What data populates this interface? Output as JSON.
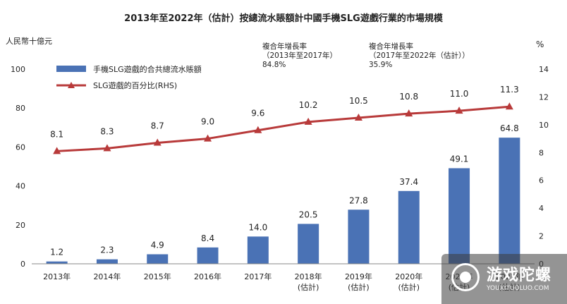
{
  "chart_data": {
    "type": "bar+line",
    "title": "2013年至2022年（估計）按總流水賬額計中國手機SLG遊戲行業的市場規模",
    "ylabel_left": "人民幣十億元",
    "ylabel_right": "%",
    "categories": [
      [
        "2013年"
      ],
      [
        "2014年"
      ],
      [
        "2015年"
      ],
      [
        "2016年"
      ],
      [
        "2017年"
      ],
      [
        "2018年",
        "(估計)"
      ],
      [
        "2019年",
        "(估計)"
      ],
      [
        "2020年",
        "(估計)"
      ],
      [
        "2021年",
        "(估計)"
      ],
      [
        "2022年",
        "(估計)"
      ]
    ],
    "series": [
      {
        "name": "手機SLG遊戲的合共總流水賬額",
        "type": "bar",
        "axis": "left",
        "values": [
          1.2,
          2.3,
          4.9,
          8.4,
          14.0,
          20.5,
          27.8,
          37.4,
          49.1,
          64.8
        ],
        "labels": [
          "1.2",
          "2.3",
          "4.9",
          "8.4",
          "14.0",
          "20.5",
          "27.8",
          "37.4",
          "49.1",
          "64.8"
        ]
      },
      {
        "name": "SLG遊戲的百分比(RHS)",
        "type": "line",
        "axis": "right",
        "values": [
          8.1,
          8.3,
          8.7,
          9.0,
          9.6,
          10.2,
          10.5,
          10.8,
          11.0,
          11.3
        ],
        "labels": [
          "8.1",
          "8.3",
          "8.7",
          "9.0",
          "9.6",
          "10.2",
          "10.5",
          "10.8",
          "11.0",
          "11.3"
        ]
      }
    ],
    "ylim_left": [
      0,
      100
    ],
    "yticks_left": [
      "0",
      "20",
      "40",
      "60",
      "80",
      "100"
    ],
    "ylim_right": [
      0,
      14
    ],
    "yticks_right": [
      "0",
      "2",
      "4",
      "6",
      "8",
      "10",
      "12",
      "14"
    ],
    "legend_position": "top-left",
    "grid": false,
    "colors": {
      "bar": "#4a72b5",
      "line": "#b83a3a"
    }
  },
  "annotations": [
    {
      "line1": "複合年增長率",
      "line2": "（2013年至2017年）",
      "line3": "84.8%"
    },
    {
      "line1": "複合年增長率",
      "line2": "（2017年至2022年（估計））",
      "line3": "35.9%"
    }
  ],
  "watermark": {
    "text": "游戏陀螺",
    "sub": "YOUXITUOLUO.COM"
  }
}
